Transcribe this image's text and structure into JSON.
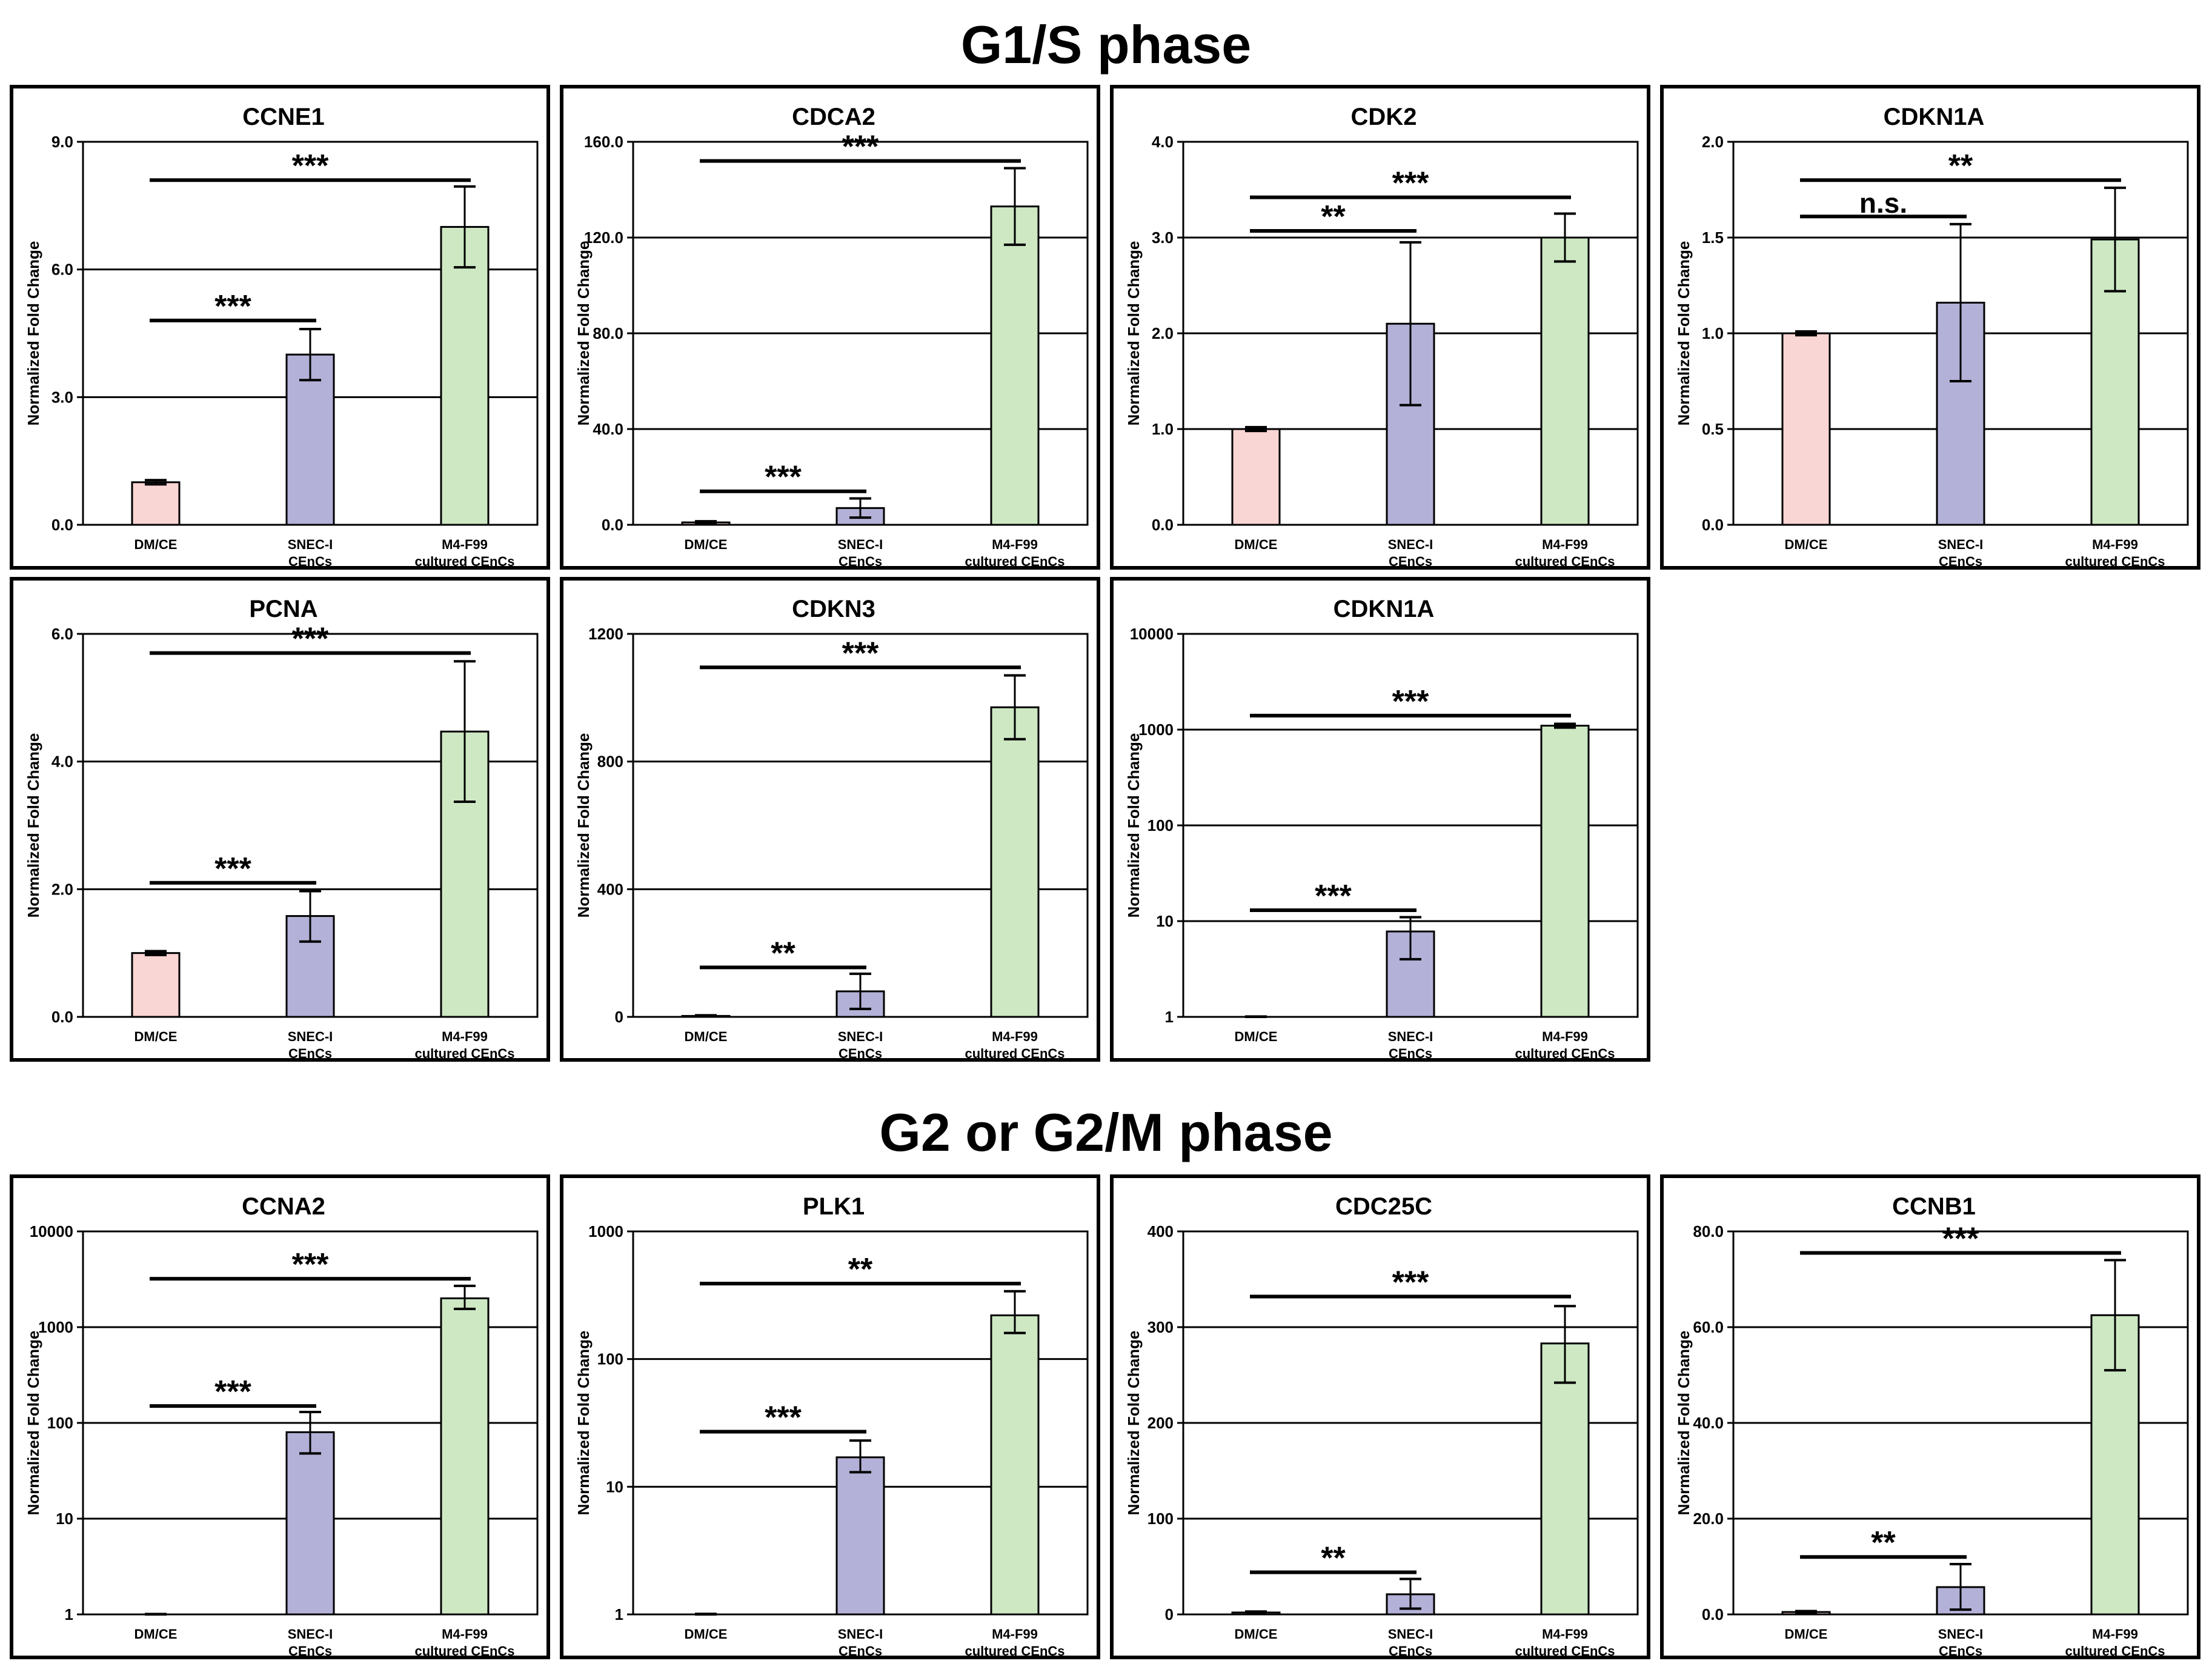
{
  "sections": {
    "top_title": "G1/S phase",
    "bottom_title": "G2 or G2/M phase"
  },
  "common": {
    "ylabel": "Normalized Fold Change",
    "categories": [
      [
        "DM/CE"
      ],
      [
        "SNEC-I",
        "CEnCs"
      ],
      [
        "M4-F99",
        "cultured CEnCs"
      ]
    ],
    "colors": [
      "#f9d5d3",
      "#b3b1d7",
      "#cde8c3"
    ]
  },
  "chart_data": [
    {
      "type": "bar",
      "section": "G1/S phase",
      "title": "CCNE1",
      "scale": "linear",
      "ylim": [
        0,
        9
      ],
      "ticks": [
        "0.0",
        "3.0",
        "6.0",
        "9.0"
      ],
      "tick_values": [
        0,
        3,
        6,
        9
      ],
      "values": [
        1.0,
        4.0,
        7.0
      ],
      "err_low": [
        0.95,
        3.4,
        6.05
      ],
      "err_high": [
        1.05,
        4.6,
        7.95
      ],
      "sig": [
        {
          "label": "***",
          "from": 0,
          "to": 1,
          "y": 4.8
        },
        {
          "label": "***",
          "from": 0,
          "to": 2,
          "y": 8.1
        }
      ]
    },
    {
      "type": "bar",
      "section": "G1/S phase",
      "title": "CDCA2",
      "scale": "linear",
      "ylim": [
        0,
        160
      ],
      "ticks": [
        "0.0",
        "40.0",
        "80.0",
        "120.0",
        "160.0"
      ],
      "tick_values": [
        0,
        40,
        80,
        120,
        160
      ],
      "values": [
        1.0,
        7.0,
        133.0
      ],
      "err_low": [
        0.5,
        3.0,
        117.0
      ],
      "err_high": [
        1.5,
        11.0,
        149.0
      ],
      "sig": [
        {
          "label": "***",
          "from": 0,
          "to": 1,
          "y": 14
        },
        {
          "label": "***",
          "from": 0,
          "to": 2,
          "y": 152
        }
      ]
    },
    {
      "type": "bar",
      "section": "G1/S phase",
      "title": "CDK2",
      "scale": "linear",
      "ylim": [
        0,
        4
      ],
      "ticks": [
        "0.0",
        "1.0",
        "2.0",
        "3.0",
        "4.0"
      ],
      "tick_values": [
        0,
        1,
        2,
        3,
        4
      ],
      "values": [
        1.0,
        2.1,
        3.0
      ],
      "err_low": [
        0.98,
        1.25,
        2.75
      ],
      "err_high": [
        1.02,
        2.95,
        3.25
      ],
      "sig": [
        {
          "label": "**",
          "from": 0,
          "to": 1,
          "y": 3.07
        },
        {
          "label": "***",
          "from": 0,
          "to": 2,
          "y": 3.42
        }
      ]
    },
    {
      "type": "bar",
      "section": "G1/S phase",
      "title": "CDKN1A",
      "scale": "linear",
      "ylim": [
        0,
        2
      ],
      "ticks": [
        "0.0",
        "0.5",
        "1.0",
        "1.5",
        "2.0"
      ],
      "tick_values": [
        0,
        0.5,
        1.0,
        1.5,
        2.0
      ],
      "values": [
        1.0,
        1.16,
        1.49
      ],
      "err_low": [
        0.99,
        0.75,
        1.22
      ],
      "err_high": [
        1.01,
        1.57,
        1.76
      ],
      "sig": [
        {
          "label": "n.s.",
          "from": 0,
          "to": 1,
          "y": 1.61
        },
        {
          "label": "**",
          "from": 0,
          "to": 2,
          "y": 1.8
        }
      ]
    },
    {
      "type": "bar",
      "section": "G1/S phase",
      "title": "PCNA",
      "scale": "linear",
      "ylim": [
        0,
        6
      ],
      "ticks": [
        "0.0",
        "2.0",
        "4.0",
        "6.0"
      ],
      "tick_values": [
        0,
        2,
        4,
        6
      ],
      "values": [
        1.0,
        1.58,
        4.47
      ],
      "err_low": [
        0.97,
        1.18,
        3.37
      ],
      "err_high": [
        1.03,
        1.97,
        5.57
      ],
      "sig": [
        {
          "label": "***",
          "from": 0,
          "to": 1,
          "y": 2.1
        },
        {
          "label": "***",
          "from": 0,
          "to": 2,
          "y": 5.7
        }
      ]
    },
    {
      "type": "bar",
      "section": "G1/S phase",
      "title": "CDKN3",
      "scale": "linear",
      "ylim": [
        0,
        1200
      ],
      "ticks": [
        "0",
        "400",
        "800",
        "1200"
      ],
      "tick_values": [
        0,
        400,
        800,
        1200
      ],
      "values": [
        3,
        80,
        970
      ],
      "err_low": [
        1,
        25,
        870
      ],
      "err_high": [
        5,
        135,
        1070
      ],
      "sig": [
        {
          "label": "**",
          "from": 0,
          "to": 1,
          "y": 155
        },
        {
          "label": "***",
          "from": 0,
          "to": 2,
          "y": 1095
        }
      ]
    },
    {
      "type": "bar",
      "section": "G1/S phase",
      "title": "CDKN1A",
      "scale": "log",
      "ylim": [
        1,
        10000
      ],
      "ticks": [
        "1",
        "10",
        "100",
        "1000",
        "10000"
      ],
      "tick_values": [
        1,
        10,
        100,
        1000,
        10000
      ],
      "values": [
        1.0,
        7.8,
        1100
      ],
      "err_low": [
        0.99,
        4.0,
        1050
      ],
      "err_high": [
        1.01,
        11.0,
        1150
      ],
      "sig": [
        {
          "label": "***",
          "from": 0,
          "to": 1,
          "y": 13
        },
        {
          "label": "***",
          "from": 0,
          "to": 2,
          "y": 1400
        }
      ]
    },
    {
      "type": "bar",
      "section": "G2 or G2/M phase",
      "title": "CCNA2",
      "scale": "log",
      "ylim": [
        1,
        10000
      ],
      "ticks": [
        "1",
        "10",
        "100",
        "1000",
        "10000"
      ],
      "tick_values": [
        1,
        10,
        100,
        1000,
        10000
      ],
      "values": [
        1.0,
        80,
        2000
      ],
      "err_low": [
        0.99,
        48,
        1550
      ],
      "err_high": [
        1.01,
        130,
        2700
      ],
      "sig": [
        {
          "label": "***",
          "from": 0,
          "to": 1,
          "y": 150
        },
        {
          "label": "***",
          "from": 0,
          "to": 2,
          "y": 3200
        }
      ]
    },
    {
      "type": "bar",
      "section": "G2 or G2/M phase",
      "title": "PLK1",
      "scale": "log",
      "ylim": [
        1,
        1000
      ],
      "ticks": [
        "1",
        "10",
        "100",
        "1000"
      ],
      "tick_values": [
        1,
        10,
        100,
        1000
      ],
      "values": [
        1.0,
        17,
        220
      ],
      "err_low": [
        0.99,
        13,
        160
      ],
      "err_high": [
        1.01,
        23,
        340
      ],
      "sig": [
        {
          "label": "***",
          "from": 0,
          "to": 1,
          "y": 27
        },
        {
          "label": "**",
          "from": 0,
          "to": 2,
          "y": 390
        }
      ]
    },
    {
      "type": "bar",
      "section": "G2 or G2/M phase",
      "title": "CDC25C",
      "scale": "linear",
      "ylim": [
        0,
        400
      ],
      "ticks": [
        "0",
        "100",
        "200",
        "300",
        "400"
      ],
      "tick_values": [
        0,
        100,
        200,
        300,
        400
      ],
      "values": [
        2,
        21,
        283
      ],
      "err_low": [
        1,
        6,
        242
      ],
      "err_high": [
        3,
        37,
        322
      ],
      "sig": [
        {
          "label": "**",
          "from": 0,
          "to": 1,
          "y": 44
        },
        {
          "label": "***",
          "from": 0,
          "to": 2,
          "y": 332
        }
      ]
    },
    {
      "type": "bar",
      "section": "G2 or G2/M phase",
      "title": "CCNB1",
      "scale": "linear",
      "ylim": [
        0,
        80
      ],
      "ticks": [
        "0.0",
        "20.0",
        "40.0",
        "60.0",
        "80.0"
      ],
      "tick_values": [
        0,
        20,
        40,
        60,
        80
      ],
      "values": [
        0.5,
        5.7,
        62.5
      ],
      "err_low": [
        0.3,
        1.0,
        51.0
      ],
      "err_high": [
        0.7,
        10.5,
        74.0
      ],
      "sig": [
        {
          "label": "**",
          "from": 0,
          "to": 1,
          "y": 12
        },
        {
          "label": "***",
          "from": 0,
          "to": 2,
          "y": 75.5
        }
      ]
    }
  ]
}
